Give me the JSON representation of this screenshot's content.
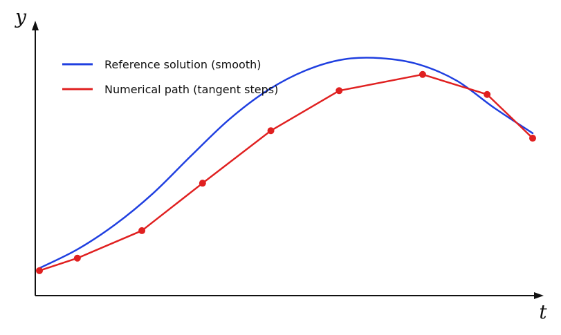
{
  "chart_data": {
    "type": "line",
    "title": "",
    "xlabel": "t",
    "ylabel": "y",
    "xlim": [
      0,
      13
    ],
    "ylim": [
      0,
      11
    ],
    "grid": false,
    "legend_position": "top-left",
    "series": [
      {
        "name": "Reference solution (smooth)",
        "color": "#1f3fe0",
        "style": "smooth",
        "markers": false,
        "x": [
          0,
          1,
          2,
          3,
          4,
          5,
          6,
          7,
          8,
          9,
          10,
          11,
          12,
          13
        ],
        "y": [
          1.1,
          1.85,
          2.85,
          4.1,
          5.6,
          7.05,
          8.2,
          9.0,
          9.45,
          9.5,
          9.25,
          8.6,
          7.5,
          6.5
        ]
      },
      {
        "name": "Numerical path (tangent steps)",
        "color": "#e02020",
        "style": "polyline",
        "markers": true,
        "x": [
          0,
          1,
          2.7,
          4.3,
          6.1,
          7.9,
          10.1,
          11.8,
          13
        ],
        "y": [
          1.0,
          1.5,
          2.6,
          4.5,
          6.6,
          8.2,
          8.85,
          8.05,
          6.3
        ]
      }
    ]
  }
}
